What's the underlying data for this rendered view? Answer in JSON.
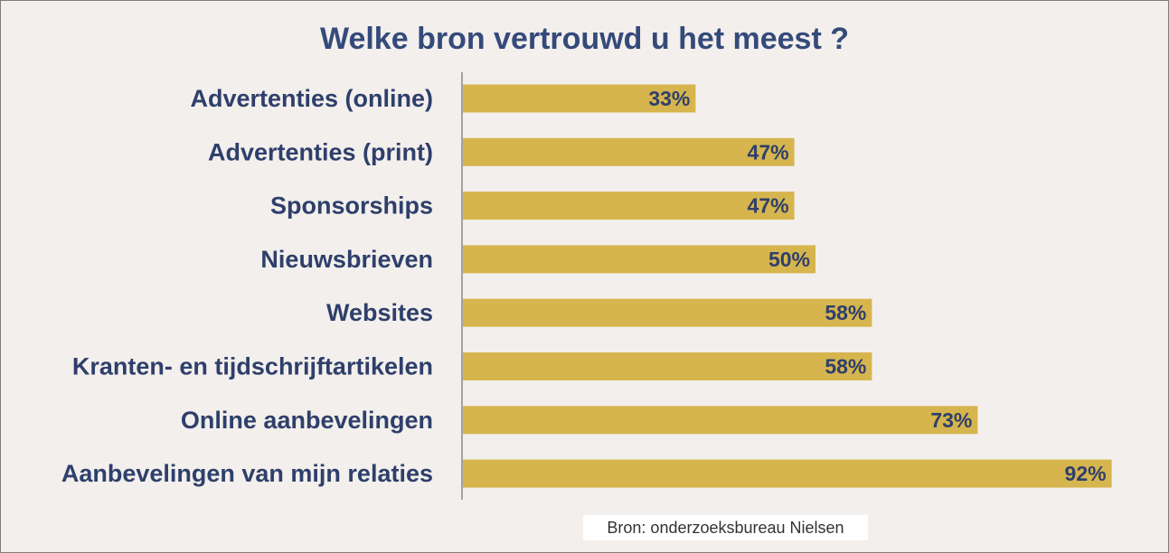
{
  "chart_data": {
    "type": "bar",
    "orientation": "horizontal",
    "title": "Welke bron vertrouwd u het meest ?",
    "categories": [
      "Advertenties (online)",
      "Advertenties (print)",
      "Sponsorships",
      "Nieuwsbrieven",
      "Websites",
      "Kranten- en tijdschrijftartikelen",
      "Online aanbevelingen",
      "Aanbevelingen van mijn relaties"
    ],
    "values": [
      33,
      47,
      47,
      50,
      58,
      58,
      73,
      92
    ],
    "value_labels": [
      "33%",
      "47%",
      "47%",
      "50%",
      "58%",
      "58%",
      "73%",
      "92%"
    ],
    "xlim": [
      0,
      100
    ],
    "grid": false,
    "legend": "none",
    "bar_color": "#d6b54e",
    "text_color": "#2e3f6b",
    "source": "Bron: onderzoeksbureau Nielsen"
  }
}
